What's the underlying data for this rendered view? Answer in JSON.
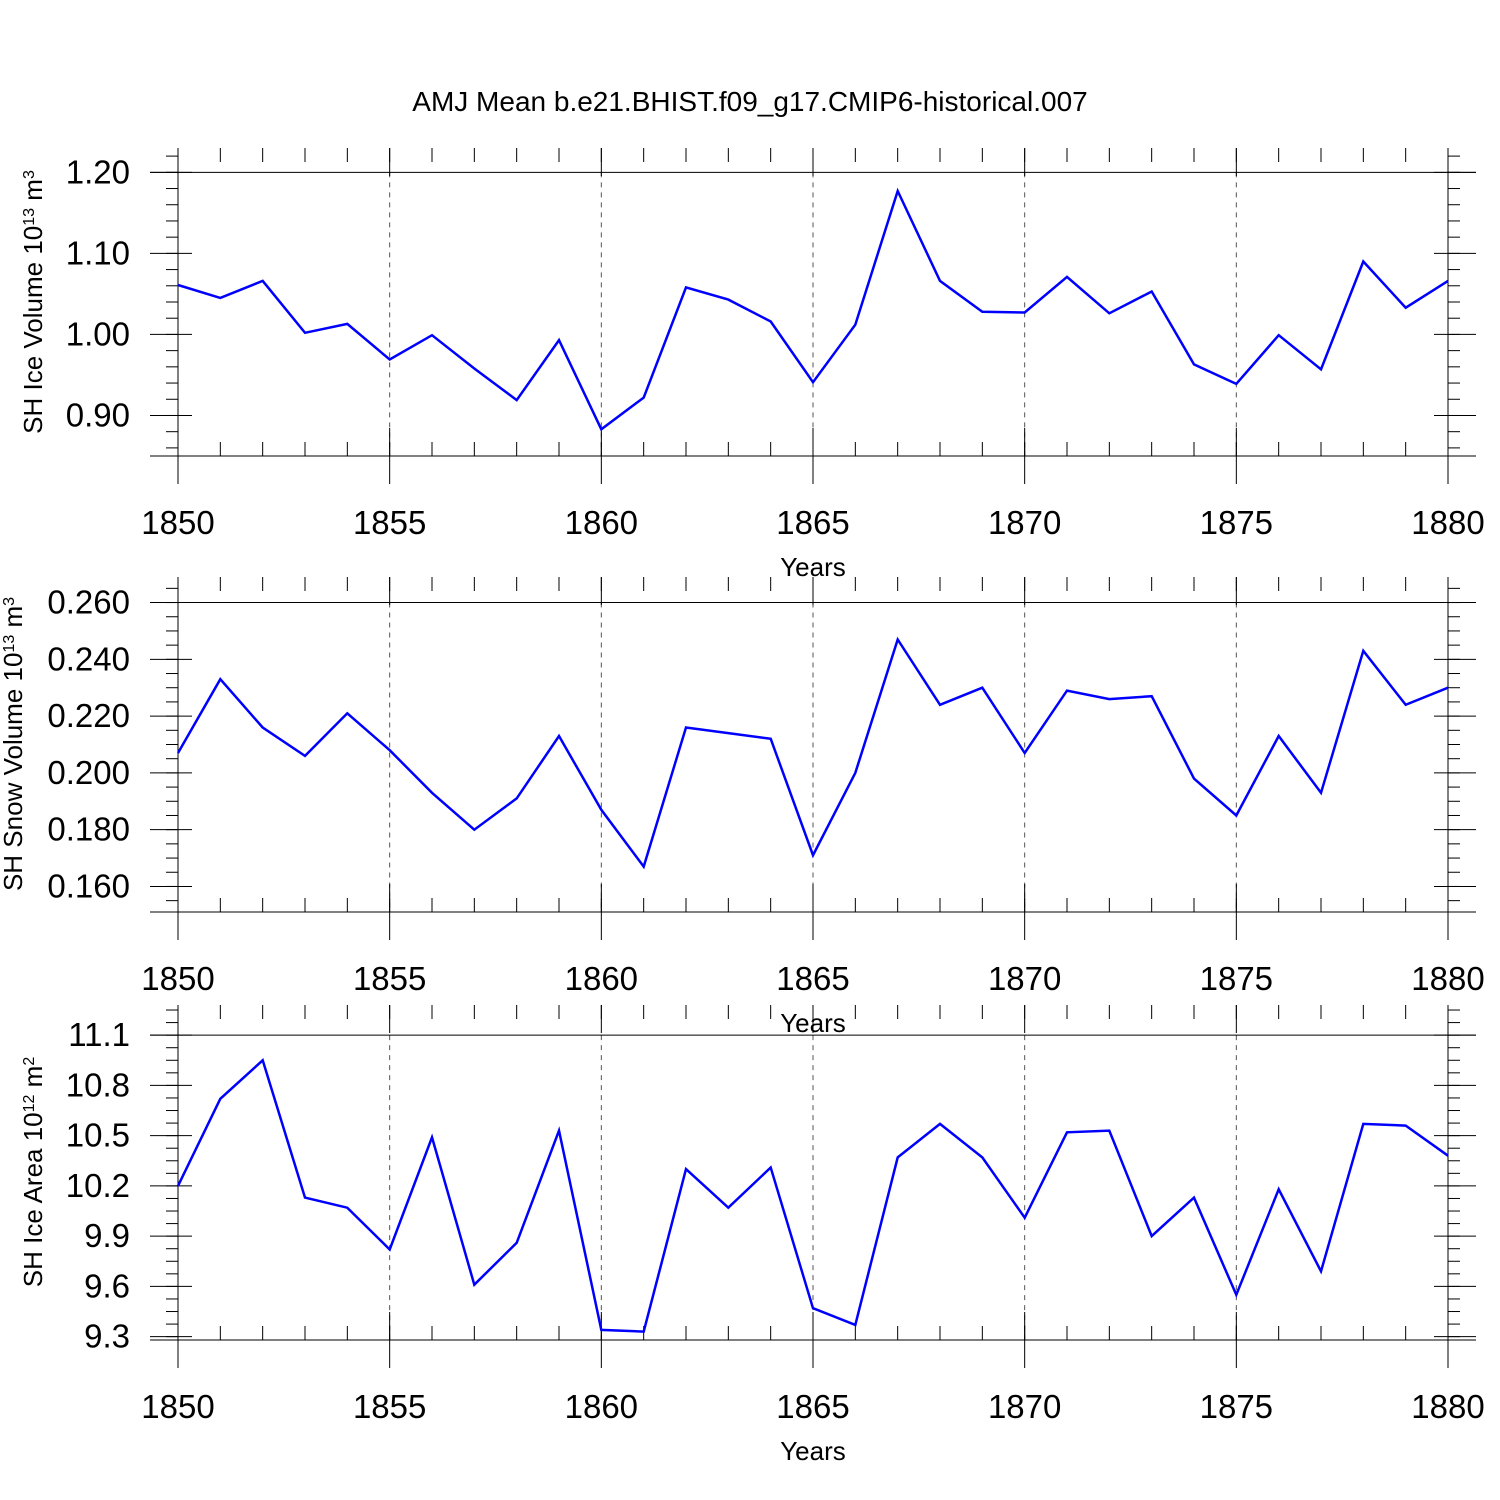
{
  "title": "AMJ Mean b.e21.BHIST.f09_g17.CMIP6-historical.007",
  "series_color": "#0000ff",
  "chart_data": [
    {
      "type": "line",
      "xlabel": "Years",
      "ylabel_main": "SH Ice Volume 10",
      "ylabel_exp": "13",
      "ylabel_unit": " m",
      "ylabel_unit_exp": "3",
      "xlim": [
        1850,
        1880
      ],
      "ylim": [
        0.85,
        1.23
      ],
      "xticks": [
        1850,
        1855,
        1860,
        1865,
        1870,
        1875,
        1880
      ],
      "xtick_labels": [
        "1850",
        "1855",
        "1860",
        "1865",
        "1870",
        "1875",
        "1880"
      ],
      "yticks": [
        0.9,
        1.0,
        1.1,
        1.2
      ],
      "ytick_labels": [
        "0.90",
        "1.00",
        "1.10",
        "1.20"
      ],
      "y_minor_step": 0.02,
      "x": [
        1850,
        1851,
        1852,
        1853,
        1854,
        1855,
        1856,
        1857,
        1858,
        1859,
        1860,
        1861,
        1862,
        1863,
        1864,
        1865,
        1866,
        1867,
        1868,
        1869,
        1870,
        1871,
        1872,
        1873,
        1874,
        1875,
        1876,
        1877,
        1878,
        1879,
        1880
      ],
      "values": [
        1.061,
        1.045,
        1.066,
        1.002,
        1.013,
        0.969,
        0.999,
        0.958,
        0.919,
        0.993,
        0.883,
        0.922,
        1.058,
        1.043,
        1.016,
        0.941,
        1.012,
        1.177,
        1.066,
        1.028,
        1.027,
        1.071,
        1.026,
        1.053,
        0.963,
        0.939,
        0.999,
        0.957,
        1.09,
        1.033,
        1.066
      ]
    },
    {
      "type": "line",
      "xlabel": "Years",
      "ylabel_main": "SH Snow Volume 10",
      "ylabel_exp": "13",
      "ylabel_unit": " m",
      "ylabel_unit_exp": "3",
      "xlim": [
        1850,
        1880
      ],
      "ylim": [
        0.151,
        0.269
      ],
      "xticks": [
        1850,
        1855,
        1860,
        1865,
        1870,
        1875,
        1880
      ],
      "xtick_labels": [
        "1850",
        "1855",
        "1860",
        "1865",
        "1870",
        "1875",
        "1880"
      ],
      "yticks": [
        0.16,
        0.18,
        0.2,
        0.22,
        0.24,
        0.26
      ],
      "ytick_labels": [
        "0.160",
        "0.180",
        "0.200",
        "0.220",
        "0.240",
        "0.260"
      ],
      "y_minor_step": 0.005,
      "x": [
        1850,
        1851,
        1852,
        1853,
        1854,
        1855,
        1856,
        1857,
        1858,
        1859,
        1860,
        1861,
        1862,
        1863,
        1864,
        1865,
        1866,
        1867,
        1868,
        1869,
        1870,
        1871,
        1872,
        1873,
        1874,
        1875,
        1876,
        1877,
        1878,
        1879,
        1880
      ],
      "values": [
        0.207,
        0.233,
        0.216,
        0.206,
        0.221,
        0.208,
        0.193,
        0.18,
        0.191,
        0.213,
        0.187,
        0.167,
        0.216,
        0.214,
        0.212,
        0.171,
        0.2,
        0.247,
        0.224,
        0.23,
        0.207,
        0.229,
        0.226,
        0.227,
        0.198,
        0.185,
        0.213,
        0.193,
        0.243,
        0.224,
        0.23
      ]
    },
    {
      "type": "line",
      "xlabel": "Years",
      "ylabel_main": "SH Ice Area 10",
      "ylabel_exp": "12",
      "ylabel_unit": " m",
      "ylabel_unit_exp": "2",
      "xlim": [
        1850,
        1880
      ],
      "ylim": [
        9.28,
        11.28
      ],
      "xticks": [
        1850,
        1855,
        1860,
        1865,
        1870,
        1875,
        1880
      ],
      "xtick_labels": [
        "1850",
        "1855",
        "1860",
        "1865",
        "1870",
        "1875",
        "1880"
      ],
      "yticks": [
        9.3,
        9.6,
        9.9,
        10.2,
        10.5,
        10.8,
        11.1
      ],
      "ytick_labels": [
        "9.3",
        "9.6",
        "9.9",
        "10.2",
        "10.5",
        "10.8",
        "11.1"
      ],
      "y_minor_step": 0.075,
      "x": [
        1850,
        1851,
        1852,
        1853,
        1854,
        1855,
        1856,
        1857,
        1858,
        1859,
        1860,
        1861,
        1862,
        1863,
        1864,
        1865,
        1866,
        1867,
        1868,
        1869,
        1870,
        1871,
        1872,
        1873,
        1874,
        1875,
        1876,
        1877,
        1878,
        1879,
        1880
      ],
      "values": [
        10.2,
        10.72,
        10.95,
        10.13,
        10.07,
        9.82,
        10.49,
        9.61,
        9.86,
        10.53,
        9.34,
        9.33,
        10.3,
        10.07,
        10.31,
        9.47,
        9.37,
        10.37,
        10.57,
        10.37,
        10.01,
        10.52,
        10.53,
        9.9,
        10.13,
        9.55,
        10.18,
        9.69,
        10.57,
        10.56,
        10.38
      ]
    }
  ]
}
